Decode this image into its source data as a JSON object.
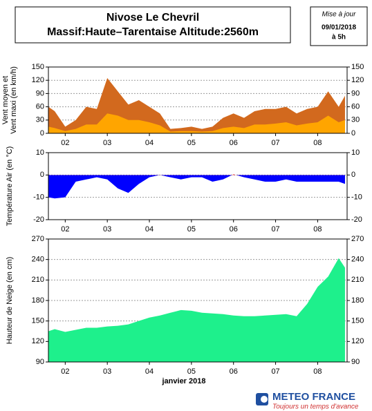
{
  "header": {
    "title": [
      "Nivose Le Chevril",
      "Massif:Haute–Tarentaise Altitude:2560m"
    ],
    "update": [
      "Mise à jour",
      "09/01/2018",
      "à 5h"
    ]
  },
  "footer": {
    "brand": "METEO FRANCE",
    "tagline": "Toujours un temps d'avance"
  },
  "chart_data": [
    {
      "type": "area",
      "ylabel": [
        "Vent moyen et",
        "Vent maxi (en km/h)"
      ],
      "x": [
        1.6,
        1.75,
        2,
        2.25,
        2.5,
        2.75,
        3,
        3.25,
        3.5,
        3.75,
        4,
        4.25,
        4.5,
        4.75,
        5,
        5.25,
        5.5,
        5.75,
        6,
        6.25,
        6.5,
        6.75,
        7,
        7.25,
        7.5,
        7.75,
        8,
        8.25,
        8.5,
        8.65
      ],
      "series": [
        {
          "color": "#d2691e",
          "values": [
            60,
            50,
            15,
            30,
            60,
            55,
            125,
            95,
            65,
            75,
            60,
            45,
            10,
            12,
            15,
            10,
            15,
            35,
            45,
            35,
            50,
            55,
            55,
            60,
            45,
            55,
            60,
            95,
            60,
            85
          ]
        },
        {
          "color": "#ffa500",
          "values": [
            15,
            12,
            5,
            10,
            20,
            20,
            45,
            40,
            30,
            30,
            25,
            18,
            4,
            5,
            5,
            4,
            5,
            12,
            15,
            12,
            20,
            20,
            22,
            25,
            18,
            22,
            25,
            40,
            25,
            30
          ]
        }
      ],
      "xlim": [
        1.6,
        8.7
      ],
      "ylim": [
        0,
        150
      ],
      "yticks": [
        0,
        30,
        60,
        90,
        120,
        150
      ],
      "xticks": [
        {
          "value": 2,
          "label": "02"
        },
        {
          "value": 3,
          "label": "03"
        },
        {
          "value": 4,
          "label": "04"
        },
        {
          "value": 5,
          "label": "05"
        },
        {
          "value": 6,
          "label": "06"
        },
        {
          "value": 7,
          "label": "07"
        },
        {
          "value": 8,
          "label": "08"
        }
      ],
      "grid": true
    },
    {
      "type": "signed-area",
      "ylabel": [
        "Température Air (en °C)"
      ],
      "x": [
        1.6,
        1.75,
        2,
        2.25,
        2.5,
        2.75,
        3,
        3.25,
        3.5,
        3.75,
        4,
        4.25,
        4.5,
        4.75,
        5,
        5.25,
        5.5,
        5.75,
        6,
        6.25,
        6.5,
        6.75,
        7,
        7.25,
        7.5,
        7.75,
        8,
        8.25,
        8.5,
        8.65
      ],
      "values": [
        -10,
        -10.5,
        -10,
        -3,
        -2,
        -1,
        -2,
        -6,
        -8,
        -4,
        -1,
        0,
        -1,
        -2,
        -1,
        -1,
        -3,
        -2,
        0.3,
        -1,
        -2,
        -3,
        -3,
        -2,
        -3,
        -3,
        -3,
        -3,
        -3,
        -4
      ],
      "positive_color": "#ff0000",
      "negative_color": "#0000ff",
      "xlim": [
        1.6,
        8.7
      ],
      "ylim": [
        -20,
        10
      ],
      "yticks": [
        -20,
        -10,
        0,
        10
      ],
      "xticks": [
        {
          "value": 2,
          "label": "02"
        },
        {
          "value": 3,
          "label": "03"
        },
        {
          "value": 4,
          "label": "04"
        },
        {
          "value": 5,
          "label": "05"
        },
        {
          "value": 6,
          "label": "06"
        },
        {
          "value": 7,
          "label": "07"
        },
        {
          "value": 8,
          "label": "08"
        }
      ],
      "grid": true
    },
    {
      "type": "area",
      "ylabel": [
        "Hauteur de Neige (en cm)"
      ],
      "xlabel": "janvier 2018",
      "x": [
        1.6,
        1.75,
        2,
        2.25,
        2.5,
        2.75,
        3,
        3.25,
        3.5,
        3.75,
        4,
        4.25,
        4.5,
        4.75,
        5,
        5.25,
        5.5,
        5.75,
        6,
        6.25,
        6.5,
        6.75,
        7,
        7.25,
        7.5,
        7.75,
        8,
        8.25,
        8.5,
        8.65
      ],
      "series": [
        {
          "color": "#1ef08c",
          "values": [
            135,
            138,
            134,
            137,
            140,
            140,
            142,
            143,
            145,
            150,
            155,
            158,
            162,
            166,
            165,
            162,
            161,
            160,
            158,
            157,
            157,
            158,
            159,
            160,
            157,
            175,
            200,
            215,
            242,
            228
          ]
        }
      ],
      "xlim": [
        1.6,
        8.7
      ],
      "ylim": [
        90,
        270
      ],
      "yticks": [
        90,
        120,
        150,
        180,
        210,
        240,
        270
      ],
      "xticks": [
        {
          "value": 2,
          "label": "02"
        },
        {
          "value": 3,
          "label": "03"
        },
        {
          "value": 4,
          "label": "04"
        },
        {
          "value": 5,
          "label": "05"
        },
        {
          "value": 6,
          "label": "06"
        },
        {
          "value": 7,
          "label": "07"
        },
        {
          "value": 8,
          "label": "08"
        }
      ],
      "grid": true
    }
  ]
}
